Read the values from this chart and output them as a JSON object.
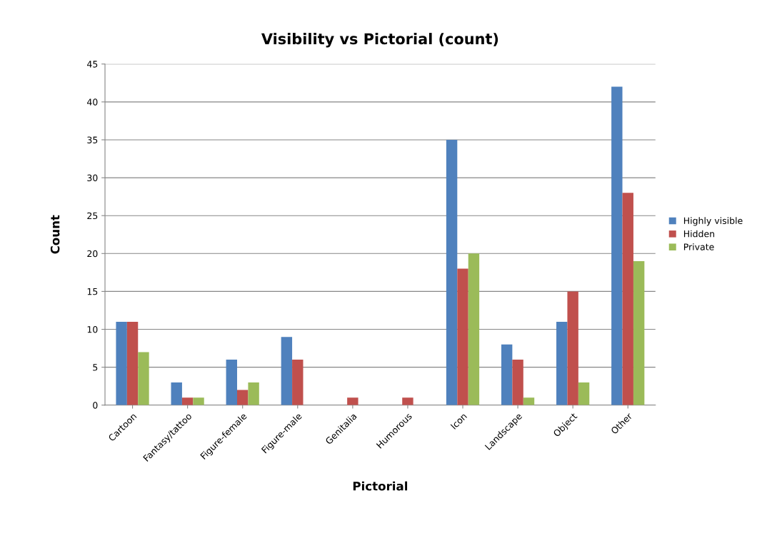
{
  "chart_data": {
    "type": "bar",
    "title": "Visibility vs Pictorial (count)",
    "xlabel": "Pictorial",
    "ylabel": "Count",
    "categories": [
      "Cartoon",
      "Fantasy/tattoo",
      "Figure-female",
      "Figure-male",
      "Genitalia",
      "Humorous",
      "Icon",
      "Landscape",
      "Object",
      "Other"
    ],
    "series": [
      {
        "name": "Highly visible",
        "color": "#4f81bd",
        "values": [
          11,
          3,
          6,
          9,
          0,
          0,
          35,
          8,
          11,
          42
        ]
      },
      {
        "name": "Hidden",
        "color": "#c0504d",
        "values": [
          11,
          1,
          2,
          6,
          1,
          1,
          18,
          6,
          15,
          28
        ]
      },
      {
        "name": "Private",
        "color": "#9bbb59",
        "values": [
          7,
          1,
          3,
          0,
          0,
          0,
          20,
          1,
          3,
          19
        ]
      }
    ],
    "ylim": [
      0,
      45
    ],
    "yticks": [
      0,
      5,
      10,
      15,
      20,
      25,
      30,
      35,
      40,
      45
    ],
    "grid": "y",
    "legend": "right"
  }
}
